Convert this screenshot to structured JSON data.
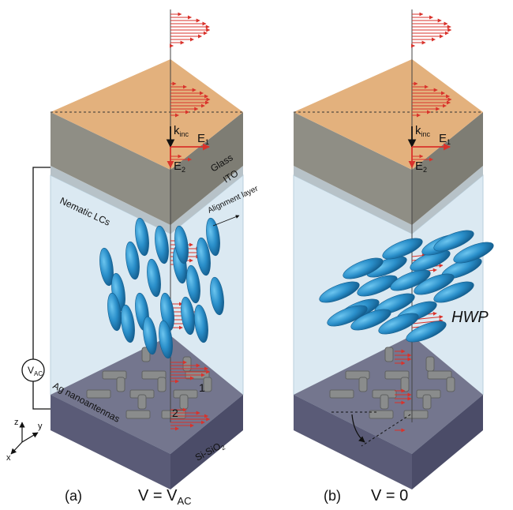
{
  "panels": [
    {
      "id": "a",
      "label": "(a)",
      "condition": "V = V",
      "condition_sub": "AC",
      "vectors": {
        "k": "k",
        "k_sub": "inc",
        "e1": "E",
        "e1_sub": "1",
        "e2": "E",
        "e2_sub": "2"
      },
      "layers": {
        "glass": "Glass",
        "ito": "ITO",
        "alignment": "Alignment layer",
        "lc": "Nematic LCs",
        "antennas": "Ag nanoantennas",
        "substrate": "Si-SiO",
        "substrate_sub": "2"
      },
      "antenna_numbers": [
        "1",
        "2"
      ],
      "source": {
        "label": "V",
        "label_sub": "AC"
      }
    },
    {
      "id": "b",
      "label": "(b)",
      "condition": "V = 0",
      "vectors": {
        "k": "k",
        "k_sub": "inc",
        "e1": "E",
        "e1_sub": "1",
        "e2": "E",
        "e2_sub": "2"
      },
      "annotation": "HWP"
    }
  ],
  "axes": {
    "x": "x",
    "y": "y",
    "z": "z"
  },
  "colors": {
    "glass": "#e3b17d",
    "ito": "#8f8e85",
    "lc_volume": "#dbe9f2",
    "substrate_top": "#6f7088",
    "substrate_side": "#5a5b77",
    "ellipsoid": "#2a8fca",
    "field_arrow": "#d9322b",
    "antenna": "#8a8c8c"
  }
}
